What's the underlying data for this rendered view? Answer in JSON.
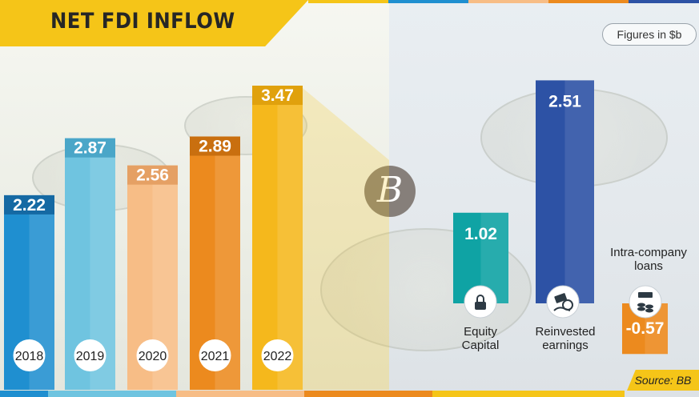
{
  "title": "NET FDI INFLOW",
  "units": "Figures in $b",
  "source": "Source: BB",
  "logo_letter": "B",
  "chart_data": [
    {
      "type": "bar",
      "categories": [
        "2018",
        "2019",
        "2020",
        "2021",
        "2022"
      ],
      "values": [
        2.22,
        2.87,
        2.56,
        2.89,
        3.47
      ],
      "value_labels": [
        "2.22",
        "2.87",
        "2.56",
        "2.89",
        "3.47"
      ],
      "colors": [
        "#1f8fd0",
        "#6fc4e0",
        "#f7bd86",
        "#ec8a1e",
        "#f5b81c"
      ],
      "cap_colors": [
        "#1569a3",
        "#4aa6c8",
        "#e5a064",
        "#c96f0f",
        "#e0a10d"
      ]
    },
    {
      "type": "bar",
      "categories": [
        "Equity Capital",
        "Reinvested earnings",
        "Intra-company loans"
      ],
      "values": [
        1.02,
        2.51,
        -0.57
      ],
      "value_labels": [
        "1.02",
        "2.51",
        "-0.57"
      ],
      "colors": [
        "#0fa3a4",
        "#2d52a5",
        "#ec8a1e"
      ],
      "icons": [
        "lock-icon",
        "money-hand-icon",
        "coins-stack-icon"
      ]
    }
  ]
}
